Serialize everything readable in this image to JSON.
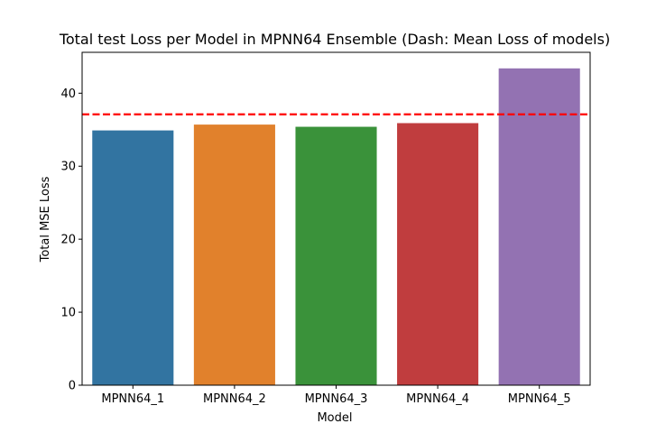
{
  "chart_data": {
    "type": "bar",
    "title": "Total test Loss per Model in MPNN64 Ensemble (Dash: Mean Loss of models)",
    "xlabel": "Model",
    "ylabel": "Total MSE Loss",
    "categories": [
      "MPNN64_1",
      "MPNN64_2",
      "MPNN64_3",
      "MPNN64_4",
      "MPNN64_5"
    ],
    "values": [
      34.9,
      35.7,
      35.4,
      35.9,
      43.4
    ],
    "colors": [
      "#3274a1",
      "#e1812c",
      "#3a923a",
      "#c03d3e",
      "#9372b2"
    ],
    "mean_line": {
      "value": 37.1,
      "color": "#ff0000",
      "style": "dashed"
    },
    "ylim": [
      0,
      45.6
    ],
    "yticks": [
      0,
      10,
      20,
      30,
      40
    ],
    "grid": false,
    "legend": "none"
  }
}
